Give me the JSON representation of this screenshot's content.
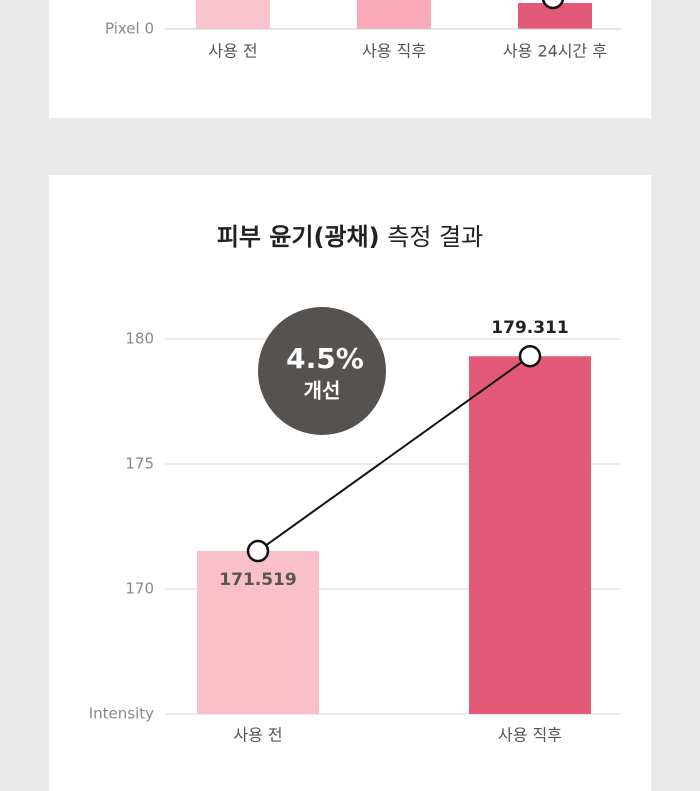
{
  "chart_data": [
    {
      "type": "bar",
      "categories": [
        "사용 전",
        "사용 직후",
        "사용 24시간 후"
      ],
      "yticks": [
        {
          "value": 0,
          "label": "Pixel 0"
        }
      ],
      "grid": true
    },
    {
      "type": "bar",
      "title_parts": [
        "피부 윤기(광채)",
        "측정 결과"
      ],
      "categories": [
        "사용 전",
        "사용 직후"
      ],
      "values": [
        171.519,
        179.311
      ],
      "colors": [
        "#f9c0ca",
        "#e35a78"
      ],
      "line": true,
      "line_color": "#111111",
      "ylim": [
        165,
        181
      ],
      "yticks": [
        {
          "value": 165,
          "label": "Intensity"
        },
        170,
        175,
        180
      ],
      "grid": true,
      "annotation": {
        "value_text": "4.5%",
        "text": "개선"
      }
    }
  ]
}
